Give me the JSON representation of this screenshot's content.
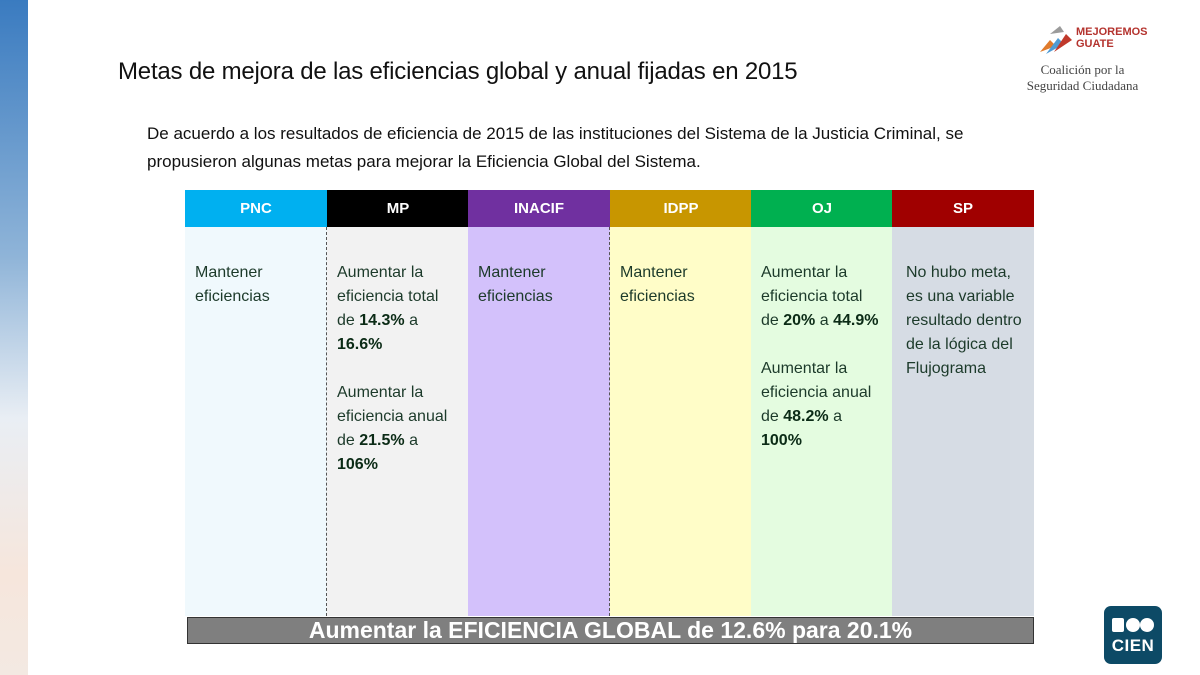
{
  "slide": {
    "title": "Metas de mejora de las eficiencias global y anual fijadas en 2015",
    "intro": "De acuerdo a los resultados de eficiencia de 2015 de las instituciones del Sistema de la Justicia Criminal, se propusieron algunas metas para mejorar la Eficiencia Global del Sistema."
  },
  "logos": {
    "mejoremos_line1": "MEJOREMOS",
    "mejoremos_line2": "GUATE",
    "coalicion_line1": "Coalición por la",
    "coalicion_line2": "Seguridad Ciudadana",
    "cien": "CIEN"
  },
  "columns": [
    {
      "label": "PNC",
      "header_color": "#00b0f0",
      "body_color": "#f0f9fd",
      "text": "Mantener eficiencias"
    },
    {
      "label": "MP",
      "header_color": "#000000",
      "body_color": "#f2f2f2",
      "goal1_a": "Aumentar la eficiencia total de ",
      "goal1_from": "14.3%",
      "goal1_mid": " a ",
      "goal1_to": "16.6%",
      "goal2_a": "Aumentar la eficiencia anual de ",
      "goal2_from": "21.5%",
      "goal2_mid": " a ",
      "goal2_to": "106%"
    },
    {
      "label": "INACIF",
      "header_color": "#7030a0",
      "body_color": "#d3c1fb",
      "text": "Mantener eficiencias"
    },
    {
      "label": "IDPP",
      "header_color": "#c89600",
      "body_color": "#fffdc8",
      "text": "Mantener eficiencias"
    },
    {
      "label": "OJ",
      "header_color": "#00b050",
      "body_color": "#e4fce0",
      "goal1_a": "Aumentar la eficiencia total de ",
      "goal1_from": "20%",
      "goal1_mid": " a ",
      "goal1_to": "44.9%",
      "goal2_a": "Aumentar la eficiencia anual de ",
      "goal2_from": "48.2%",
      "goal2_mid": " a ",
      "goal2_to": "100%"
    },
    {
      "label": "SP",
      "header_color": "#a00000",
      "body_color": "#d6dce4",
      "text": "No hubo meta, es una variable resultado dentro de la lógica del Flujograma"
    }
  ],
  "banner": "Aumentar la EFICIENCIA GLOBAL de 12.6% para 20.1%"
}
